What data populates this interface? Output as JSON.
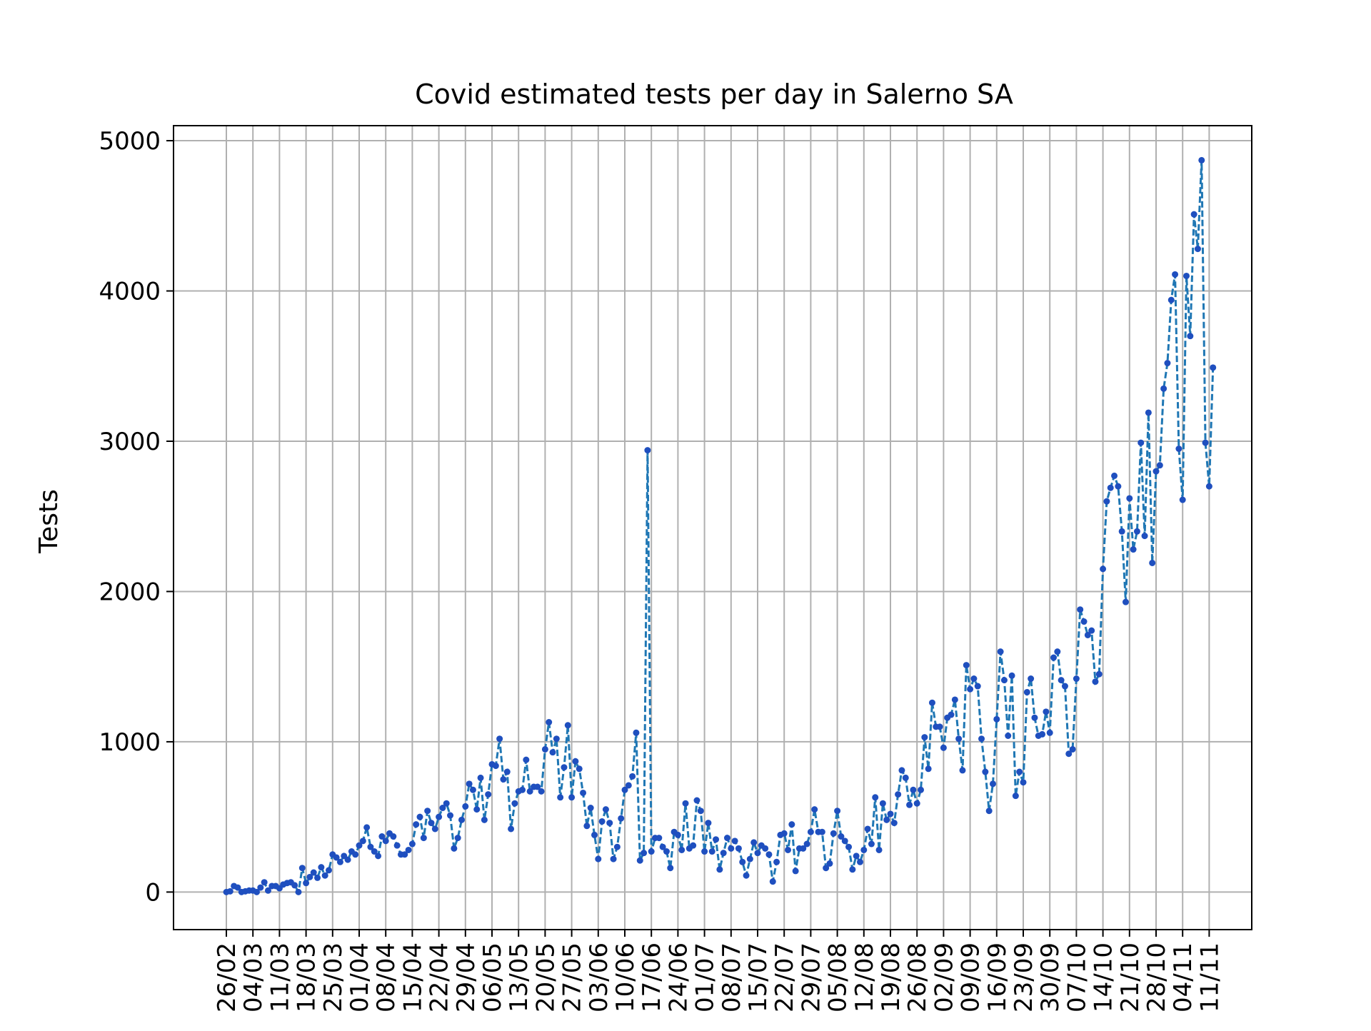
{
  "chart_data": {
    "type": "line",
    "title": "Covid estimated tests per day in Salerno SA",
    "xlabel": "",
    "ylabel": "Tests",
    "ylim": [
      -250,
      5100
    ],
    "yticks": [
      0,
      1000,
      2000,
      3000,
      4000,
      5000
    ],
    "grid": true,
    "legend": "none",
    "line_color": "#1f77b4",
    "marker_color": "#1f4fbf",
    "xticks": [
      "26/02",
      "04/03",
      "11/03",
      "18/03",
      "25/03",
      "01/04",
      "08/04",
      "15/04",
      "22/04",
      "29/04",
      "06/05",
      "13/05",
      "20/05",
      "27/05",
      "03/06",
      "10/06",
      "17/06",
      "24/06",
      "01/07",
      "08/07",
      "15/07",
      "22/07",
      "29/07",
      "05/08",
      "12/08",
      "19/08",
      "26/08",
      "02/09",
      "09/09",
      "16/09",
      "23/09",
      "30/09",
      "07/10",
      "14/10",
      "21/10",
      "28/10",
      "04/11",
      "11/11"
    ],
    "series": [
      {
        "name": "",
        "start_date": "2020-02-26",
        "values": [
          0,
          5,
          40,
          30,
          0,
          5,
          10,
          10,
          0,
          30,
          65,
          10,
          40,
          40,
          25,
          50,
          60,
          65,
          45,
          0,
          160,
          60,
          100,
          130,
          95,
          165,
          110,
          145,
          250,
          230,
          200,
          240,
          215,
          270,
          250,
          310,
          340,
          430,
          300,
          270,
          240,
          370,
          340,
          390,
          370,
          310,
          250,
          250,
          280,
          320,
          450,
          500,
          360,
          540,
          460,
          420,
          500,
          560,
          590,
          510,
          290,
          360,
          480,
          570,
          720,
          680,
          550,
          760,
          480,
          650,
          850,
          840,
          1020,
          750,
          800,
          420,
          590,
          670,
          680,
          880,
          670,
          700,
          700,
          670,
          950,
          1130,
          930,
          1020,
          630,
          830,
          1110,
          630,
          870,
          820,
          660,
          440,
          560,
          380,
          220,
          470,
          550,
          460,
          220,
          300,
          490,
          680,
          710,
          770,
          1060,
          210,
          260,
          2940,
          270,
          360,
          360,
          300,
          270,
          160,
          400,
          380,
          280,
          590,
          290,
          310,
          610,
          540,
          270,
          460,
          270,
          350,
          150,
          260,
          360,
          290,
          340,
          290,
          200,
          110,
          220,
          330,
          260,
          310,
          290,
          250,
          70,
          200,
          380,
          390,
          280,
          450,
          140,
          290,
          290,
          320,
          400,
          550,
          400,
          400,
          160,
          190,
          390,
          540,
          370,
          340,
          300,
          150,
          240,
          200,
          280,
          420,
          320,
          630,
          280,
          590,
          480,
          520,
          460,
          650,
          810,
          760,
          580,
          680,
          590,
          680,
          1030,
          820,
          1260,
          1100,
          1100,
          960,
          1160,
          1180,
          1280,
          1020,
          810,
          1510,
          1350,
          1420,
          1370,
          1020,
          800,
          540,
          720,
          1150,
          1600,
          1410,
          1040,
          1440,
          640,
          800,
          730,
          1330,
          1420,
          1160,
          1040,
          1050,
          1200,
          1060,
          1560,
          1600,
          1410,
          1370,
          920,
          950,
          1420,
          1880,
          1800,
          1710,
          1740,
          1400,
          1450,
          2150,
          2600,
          2690,
          2770,
          2700,
          2400,
          1930,
          2620,
          2280,
          2400,
          2990,
          2370,
          3190,
          2190,
          2800,
          2840,
          3350,
          3520,
          3940,
          4110,
          2950,
          2610,
          4100,
          3700,
          4510,
          4280,
          4870,
          2990,
          2700,
          3490
        ]
      }
    ]
  }
}
